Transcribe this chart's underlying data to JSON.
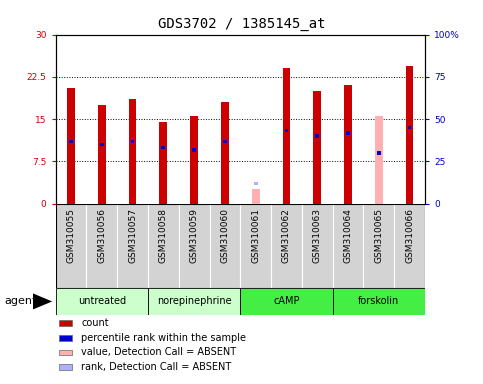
{
  "title": "GDS3702 / 1385145_at",
  "samples": [
    "GSM310055",
    "GSM310056",
    "GSM310057",
    "GSM310058",
    "GSM310059",
    "GSM310060",
    "GSM310061",
    "GSM310062",
    "GSM310063",
    "GSM310064",
    "GSM310065",
    "GSM310066"
  ],
  "count_values": [
    20.5,
    17.5,
    18.5,
    14.5,
    15.5,
    18.0,
    null,
    24.0,
    20.0,
    21.0,
    null,
    24.5
  ],
  "percentile_values": [
    11.0,
    10.5,
    11.0,
    10.0,
    9.5,
    11.0,
    null,
    13.0,
    12.0,
    12.5,
    9.0,
    13.5
  ],
  "absent_count_values": [
    null,
    null,
    null,
    null,
    null,
    null,
    2.5,
    null,
    null,
    null,
    15.5,
    null
  ],
  "absent_rank_values": [
    null,
    null,
    null,
    null,
    null,
    null,
    3.5,
    null,
    null,
    null,
    null,
    null
  ],
  "count_color": "#cc0000",
  "percentile_color": "#0000cc",
  "absent_count_color": "#ffb0b0",
  "absent_rank_color": "#b0b0ff",
  "ylim_left": [
    0,
    30
  ],
  "ylim_right": [
    0,
    100
  ],
  "yticks_left": [
    0,
    7.5,
    15,
    22.5,
    30
  ],
  "yticks_right": [
    0,
    25,
    50,
    75,
    100
  ],
  "ytick_labels_left": [
    "0",
    "7.5",
    "15",
    "22.5",
    "30"
  ],
  "ytick_labels_right": [
    "0",
    "25",
    "50",
    "75",
    "100%"
  ],
  "dotted_lines": [
    7.5,
    15,
    22.5
  ],
  "groups": [
    {
      "label": "untreated",
      "start": 0,
      "end": 3,
      "color": "#ccffcc"
    },
    {
      "label": "norepinephrine",
      "start": 3,
      "end": 6,
      "color": "#ccffcc"
    },
    {
      "label": "cAMP",
      "start": 6,
      "end": 9,
      "color": "#44ee44"
    },
    {
      "label": "forskolin",
      "start": 9,
      "end": 12,
      "color": "#44ee44"
    }
  ],
  "bar_width": 0.25,
  "percentile_bar_width": 0.12,
  "percentile_bar_height": 0.6,
  "tick_label_fontsize": 6.5,
  "title_fontsize": 10,
  "legend_fontsize": 7,
  "left_tick_color": "#cc0000",
  "right_tick_color": "#0000cc",
  "plot_bg_color": "#ffffff",
  "sample_bg_color": "#d3d3d3",
  "agent_label": "agent"
}
